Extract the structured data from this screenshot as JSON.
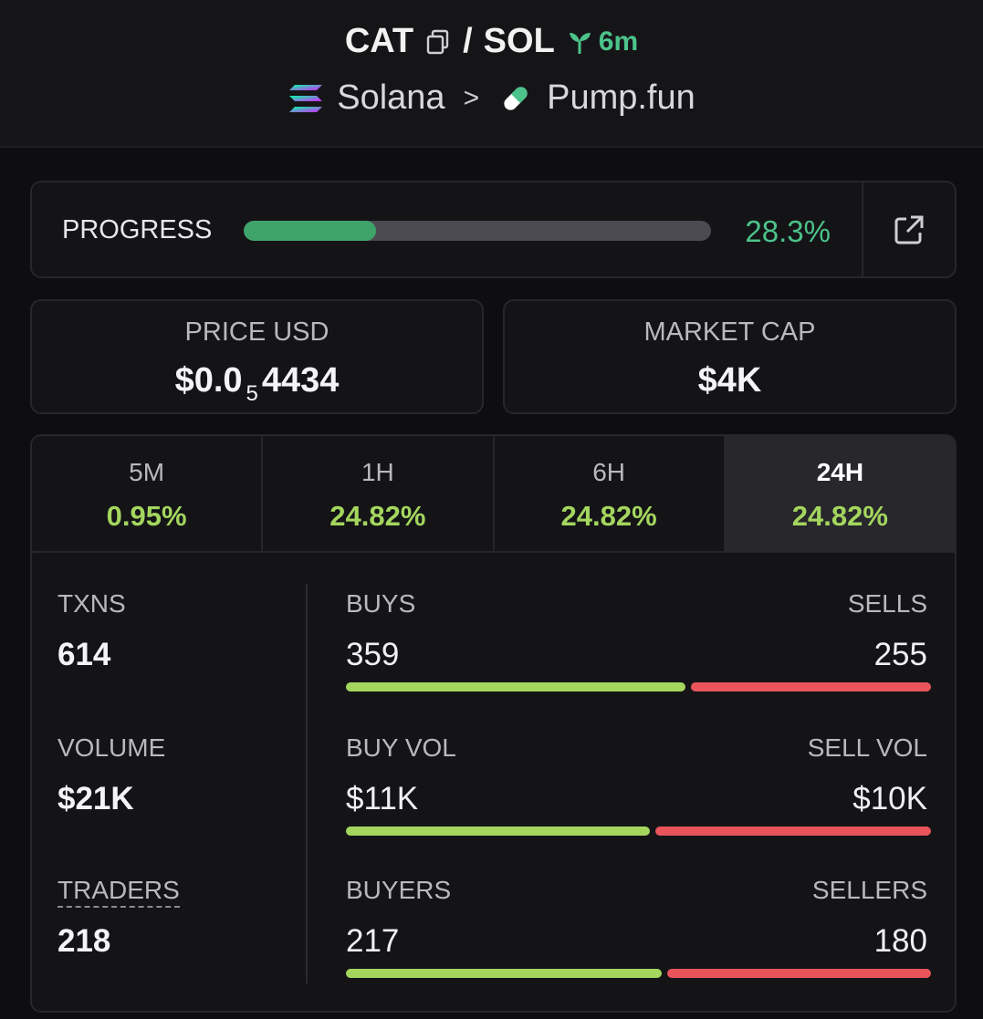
{
  "header": {
    "base_symbol": "CAT",
    "separator": "/",
    "quote_symbol": "SOL",
    "age": "6m",
    "chain": "Solana",
    "breadcrumb_sep": ">",
    "dex": "Pump.fun"
  },
  "progress": {
    "label": "PROGRESS",
    "value": 28.3,
    "value_text": "28.3%"
  },
  "price": {
    "label": "PRICE USD",
    "prefix": "$0.0",
    "zeros": "5",
    "digits": "4434"
  },
  "market_cap": {
    "label": "MARKET CAP",
    "value": "$4K"
  },
  "timeframes": [
    {
      "label": "5M",
      "change": "0.95%"
    },
    {
      "label": "1H",
      "change": "24.82%"
    },
    {
      "label": "6H",
      "change": "24.82%"
    },
    {
      "label": "24H",
      "change": "24.82%"
    }
  ],
  "stats": {
    "txns": {
      "label": "TXNS",
      "value": "614"
    },
    "buys": {
      "label": "BUYS",
      "value": "359"
    },
    "sells": {
      "label": "SELLS",
      "value": "255"
    },
    "volume": {
      "label": "VOLUME",
      "value": "$21K"
    },
    "buy_vol": {
      "label": "BUY VOL",
      "value": "$11K"
    },
    "sell_vol": {
      "label": "SELL VOL",
      "value": "$10K"
    },
    "traders": {
      "label": "TRADERS",
      "value": "218"
    },
    "buyers": {
      "label": "BUYERS",
      "value": "217"
    },
    "sellers": {
      "label": "SELLERS",
      "value": "180"
    }
  },
  "colors": {
    "accent_green": "#4cc38a",
    "change_green": "#a4d65e",
    "sell_red": "#e8545a",
    "background": "#0e0e11"
  }
}
